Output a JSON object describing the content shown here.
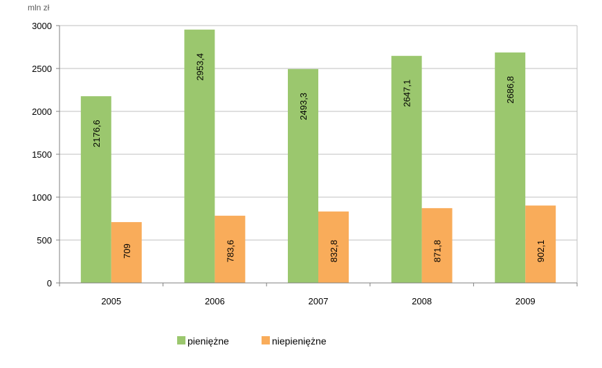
{
  "chart_data": {
    "type": "bar",
    "unit_label": "mln zł",
    "categories": [
      "2005",
      "2006",
      "2007",
      "2008",
      "2009"
    ],
    "series": [
      {
        "name": "pieniężne",
        "color": "#9BC76E",
        "values": [
          2176.6,
          2953.4,
          2493.3,
          2647.1,
          2686.8
        ],
        "labels": [
          "2176,6",
          "2953,4",
          "2493,3",
          "2647,1",
          "2686,8"
        ]
      },
      {
        "name": "niepieniężne",
        "color": "#F9AC5A",
        "values": [
          709,
          783.6,
          832.8,
          871.8,
          902.1
        ],
        "labels": [
          "709",
          "783,6",
          "832,8",
          "871,8",
          "902,1"
        ]
      }
    ],
    "y_ticks": [
      0,
      500,
      1000,
      1500,
      2000,
      2500,
      3000
    ],
    "ylim": [
      0,
      3000
    ],
    "grid": true,
    "legend_position": "bottom",
    "gridline_color": "#BFBFBF",
    "axis_color": "#7F7F7F"
  }
}
